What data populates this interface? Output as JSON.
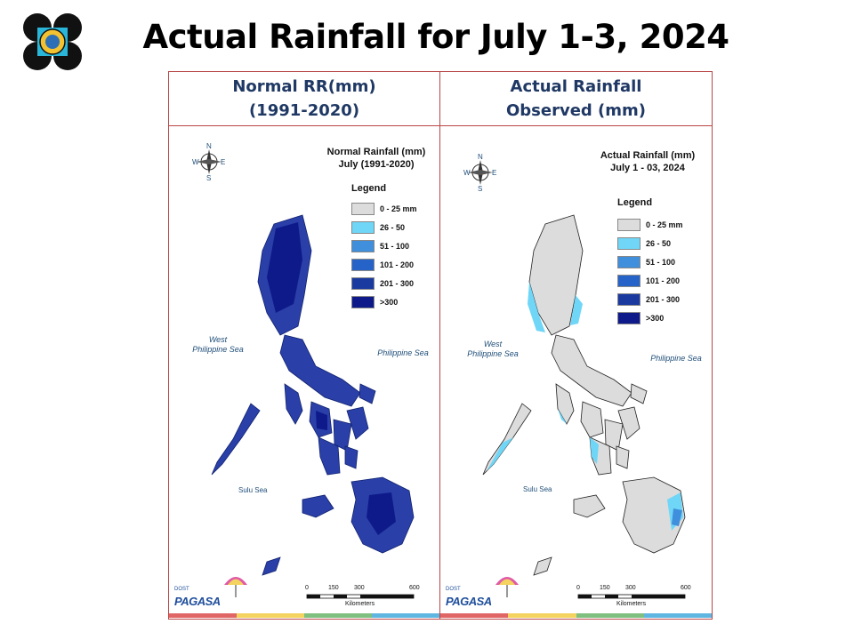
{
  "page_title": "Actual Rainfall for July 1-3, 2024",
  "colors": {
    "frame": "#b94545",
    "header_text": "#1f3864",
    "bins": [
      "#dcdcdc",
      "#6fd6f7",
      "#3f8fdc",
      "#2563c8",
      "#1a3aa0",
      "#0e1a8a"
    ],
    "bar": [
      "#e06666",
      "#f4d35e",
      "#7fbf7f",
      "#5fb6e0"
    ]
  },
  "columns": [
    {
      "header_line1": "Normal RR(mm)",
      "header_line2": "(1991-2020)",
      "map_title_line1": "Normal Rainfall (mm)",
      "map_title_line2": "July (1991-2020)",
      "dominant_bin": 5
    },
    {
      "header_line1": "Actual Rainfall",
      "header_line2": "Observed (mm)",
      "map_title_line1": "Actual Rainfall (mm)",
      "map_title_line2": "July 1 - 03, 2024",
      "dominant_bin": 0
    }
  ],
  "legend": {
    "title": "Legend",
    "bins": [
      "0 - 25 mm",
      "26 - 50",
      "51 - 100",
      "101 - 200",
      "201 - 300",
      ">300"
    ]
  },
  "labels": {
    "west_sea_line1": "West",
    "west_sea_line2": "Philippine Sea",
    "east_sea": "Philippine Sea",
    "sulu_sea": "Sulu Sea",
    "compass": [
      "N",
      "E",
      "S",
      "W"
    ],
    "scale_ticks": [
      "0",
      "150",
      "300",
      "600"
    ],
    "scale_unit": "Kilometers",
    "agency": "PAGASA",
    "agency_prefix": "DOST"
  }
}
